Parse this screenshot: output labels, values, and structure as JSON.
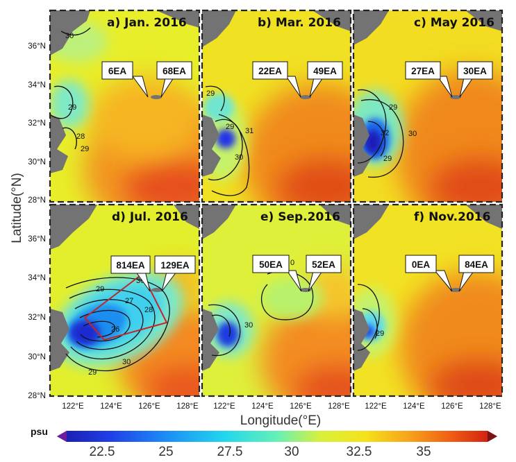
{
  "axes": {
    "ylabel": "Latitude(°N)",
    "xlabel": "Longitude(°E)",
    "lat_ticks": [
      "36°N",
      "34°N",
      "32°N",
      "30°N",
      "28°N"
    ],
    "lon_ticks": [
      "122°E",
      "124°E",
      "126°E",
      "128°E"
    ]
  },
  "colorbar": {
    "unit": "psu",
    "ticks": [
      "22.5",
      "25",
      "27.5",
      "30",
      "32.5",
      "35"
    ]
  },
  "panels": [
    {
      "title": "a) Jan. 2016",
      "left": "6EA",
      "right": "68EA",
      "contours": [
        "30",
        "29",
        "28",
        "29"
      ]
    },
    {
      "title": "b) Mar. 2016",
      "left": "22EA",
      "right": "49EA",
      "contours": [
        "29",
        "29",
        "31",
        "30"
      ]
    },
    {
      "title": "c) May 2016",
      "left": "27EA",
      "right": "30EA",
      "contours": [
        "29",
        "32",
        "30",
        "29"
      ]
    },
    {
      "title": "d) Jul. 2016",
      "left": "814EA",
      "right": "129EA",
      "contours": [
        "30",
        "29",
        "27",
        "28",
        "26",
        "30",
        "29"
      ]
    },
    {
      "title": "e) Sep.2016",
      "left": "50EA",
      "right": "52EA",
      "contours": [
        "30",
        "0"
      ]
    },
    {
      "title": "f) Nov.2016",
      "left": "0EA",
      "right": "84EA",
      "contours": [
        "29"
      ]
    }
  ]
}
